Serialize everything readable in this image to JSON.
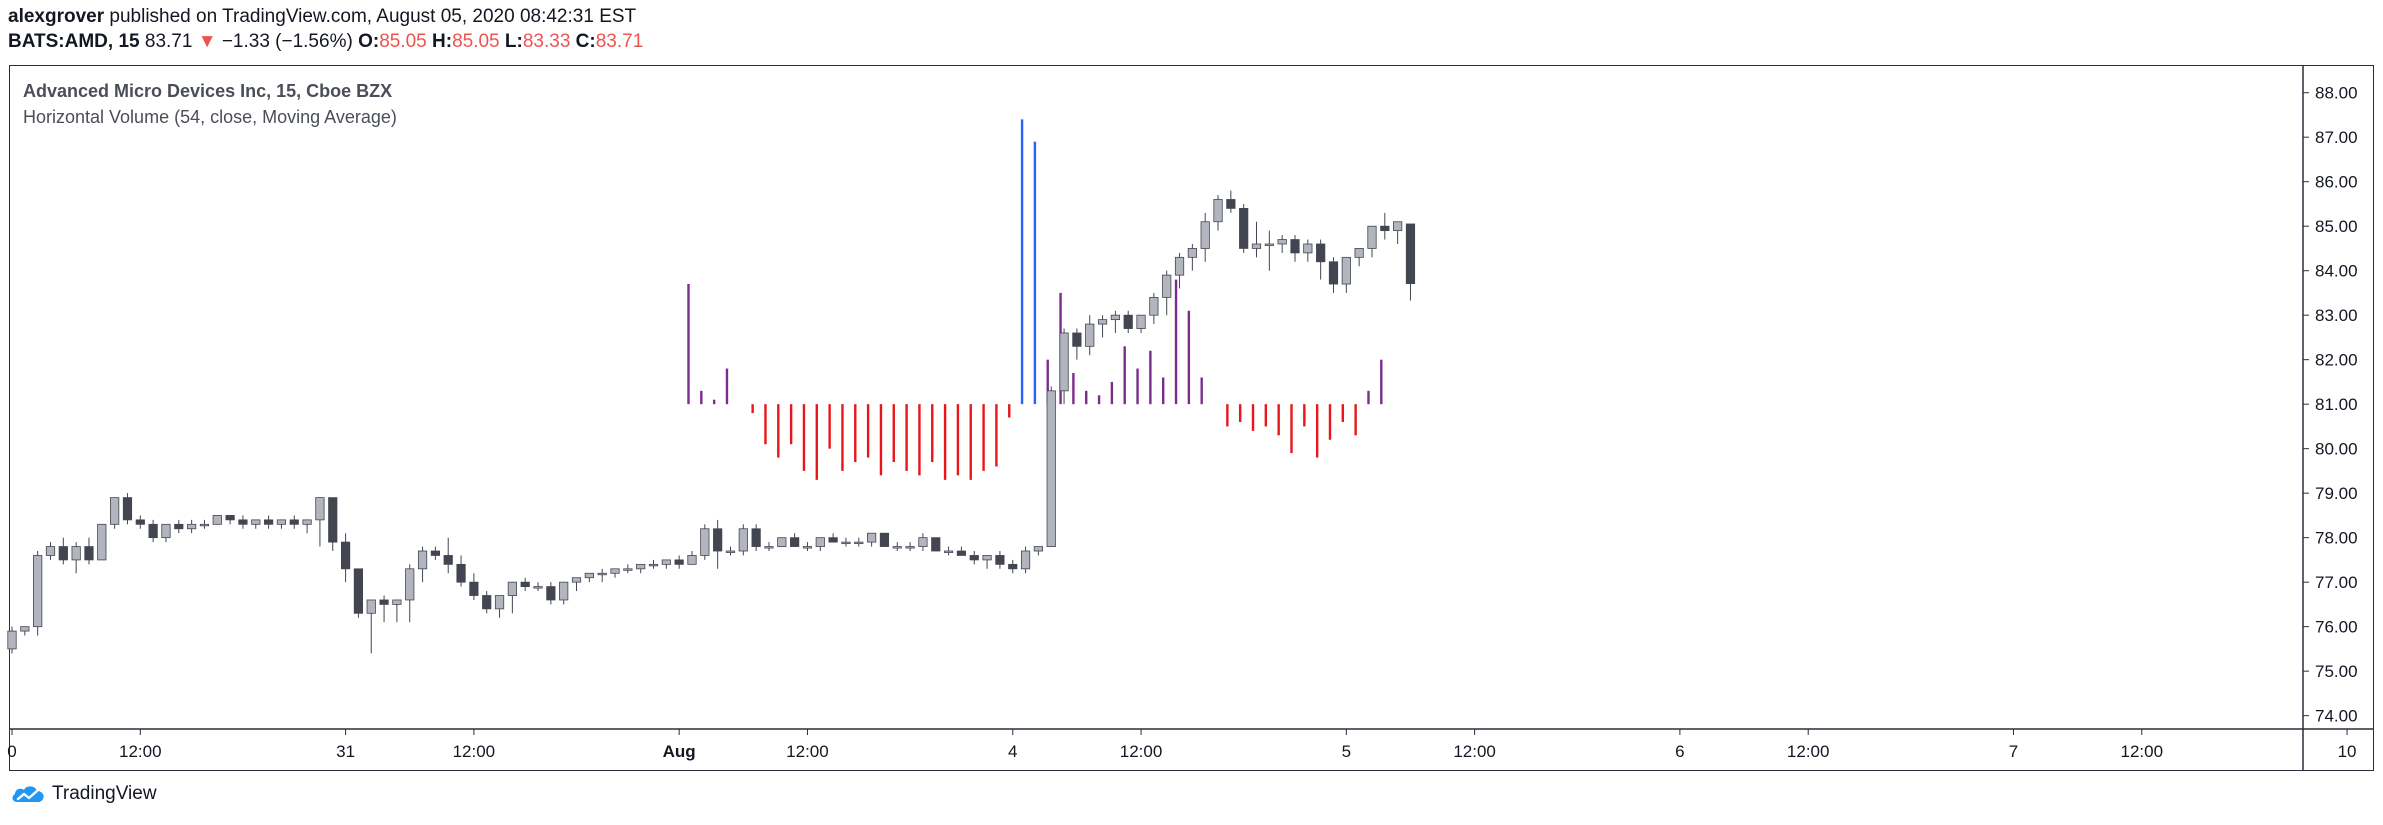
{
  "header": {
    "author": "alexgrover",
    "published": " published on TradingView.com, August 05, 2020 08:42:31 EST",
    "symbol": "BATS:AMD, 15",
    "last": "83.71",
    "change_arrow": "▼",
    "change": "−1.33 (−1.56%)",
    "o_label": "O:",
    "o_value": "85.05",
    "h_label": "H:",
    "h_value": "85.05",
    "l_label": "L:",
    "l_value": "83.33",
    "c_label": "C:",
    "c_value": "83.71"
  },
  "legend": {
    "title": "Advanced Micro Devices Inc, 15, Cboe BZX",
    "indicator": "Horizontal Volume (54, close, Moving Average)"
  },
  "footer": {
    "brand": "TradingView"
  },
  "colors": {
    "up_candle": "#b2b5be",
    "down_candle": "#434651",
    "hv_above": "#7b2d8b",
    "hv_below": "#e8161b",
    "hv_spike": "#2962ff",
    "axis_text": "#131722"
  },
  "chart_data": {
    "type": "candlestick",
    "y_axis": {
      "ylim": [
        73.7,
        88.6
      ],
      "ticks": [
        "88.00",
        "87.00",
        "86.00",
        "85.00",
        "84.00",
        "83.00",
        "82.00",
        "81.00",
        "80.00",
        "79.00",
        "78.00",
        "77.00",
        "76.00",
        "75.00",
        "74.00"
      ]
    },
    "x_axis": {
      "ticks": [
        {
          "label": "0",
          "bar": 0
        },
        {
          "label": "12:00",
          "bar": 10
        },
        {
          "label": "31",
          "bar": 26
        },
        {
          "label": "12:00",
          "bar": 36
        },
        {
          "label": "Aug",
          "bar": 52
        },
        {
          "label": "12:00",
          "bar": 62
        },
        {
          "label": "4",
          "bar": 78
        },
        {
          "label": "12:00",
          "bar": 88
        },
        {
          "label": "5",
          "bar": 104
        },
        {
          "label": "12:00",
          "bar": 114
        },
        {
          "label": "6",
          "bar": 130
        },
        {
          "label": "12:00",
          "bar": 140
        },
        {
          "label": "7",
          "bar": 156
        },
        {
          "label": "12:00",
          "bar": 166
        },
        {
          "label": "10",
          "bar": 182
        }
      ],
      "bar_range": [
        0,
        186
      ]
    },
    "candles": [
      [
        75.5,
        76.0,
        75.4,
        75.9
      ],
      [
        75.9,
        76.0,
        75.8,
        76.0
      ],
      [
        76.0,
        77.7,
        75.8,
        77.6
      ],
      [
        77.6,
        77.9,
        77.5,
        77.8
      ],
      [
        77.8,
        78.0,
        77.4,
        77.5
      ],
      [
        77.5,
        77.9,
        77.2,
        77.8
      ],
      [
        77.8,
        78.0,
        77.4,
        77.5
      ],
      [
        77.5,
        78.3,
        77.5,
        78.3
      ],
      [
        78.3,
        78.9,
        78.2,
        78.9
      ],
      [
        78.9,
        79.0,
        78.3,
        78.4
      ],
      [
        78.4,
        78.5,
        78.2,
        78.3
      ],
      [
        78.3,
        78.4,
        77.9,
        78.0
      ],
      [
        78.0,
        78.3,
        77.9,
        78.3
      ],
      [
        78.3,
        78.4,
        78.1,
        78.2
      ],
      [
        78.2,
        78.4,
        78.1,
        78.3
      ],
      [
        78.3,
        78.4,
        78.2,
        78.3
      ],
      [
        78.3,
        78.5,
        78.3,
        78.5
      ],
      [
        78.5,
        78.5,
        78.3,
        78.4
      ],
      [
        78.4,
        78.5,
        78.2,
        78.3
      ],
      [
        78.3,
        78.4,
        78.2,
        78.4
      ],
      [
        78.4,
        78.5,
        78.2,
        78.3
      ],
      [
        78.3,
        78.4,
        78.2,
        78.4
      ],
      [
        78.4,
        78.5,
        78.2,
        78.3
      ],
      [
        78.3,
        78.4,
        78.1,
        78.4
      ],
      [
        78.4,
        78.9,
        77.8,
        78.9
      ],
      [
        78.9,
        78.9,
        77.7,
        77.9
      ],
      [
        77.9,
        78.1,
        77.0,
        77.3
      ],
      [
        77.3,
        77.3,
        76.2,
        76.3
      ],
      [
        76.3,
        76.6,
        75.4,
        76.6
      ],
      [
        76.6,
        76.7,
        76.1,
        76.5
      ],
      [
        76.5,
        76.6,
        76.1,
        76.6
      ],
      [
        76.6,
        77.4,
        76.1,
        77.3
      ],
      [
        77.3,
        77.8,
        77.0,
        77.7
      ],
      [
        77.7,
        77.8,
        77.5,
        77.6
      ],
      [
        77.6,
        78.0,
        77.2,
        77.4
      ],
      [
        77.4,
        77.6,
        76.9,
        77.0
      ],
      [
        77.0,
        77.2,
        76.6,
        76.7
      ],
      [
        76.7,
        76.8,
        76.3,
        76.4
      ],
      [
        76.4,
        76.7,
        76.2,
        76.7
      ],
      [
        76.7,
        77.0,
        76.3,
        77.0
      ],
      [
        77.0,
        77.1,
        76.8,
        76.9
      ],
      [
        76.9,
        77.0,
        76.8,
        76.9
      ],
      [
        76.9,
        77.0,
        76.5,
        76.6
      ],
      [
        76.6,
        77.0,
        76.5,
        77.0
      ],
      [
        77.0,
        77.1,
        76.8,
        77.1
      ],
      [
        77.1,
        77.2,
        77.0,
        77.2
      ],
      [
        77.2,
        77.3,
        77.0,
        77.2
      ],
      [
        77.2,
        77.3,
        77.1,
        77.3
      ],
      [
        77.3,
        77.4,
        77.2,
        77.3
      ],
      [
        77.3,
        77.4,
        77.2,
        77.4
      ],
      [
        77.4,
        77.5,
        77.3,
        77.4
      ],
      [
        77.4,
        77.5,
        77.3,
        77.5
      ],
      [
        77.5,
        77.6,
        77.3,
        77.4
      ],
      [
        77.4,
        77.7,
        77.4,
        77.6
      ],
      [
        77.6,
        78.3,
        77.5,
        78.2
      ],
      [
        78.2,
        78.4,
        77.3,
        77.7
      ],
      [
        77.7,
        77.8,
        77.6,
        77.7
      ],
      [
        77.7,
        78.3,
        77.6,
        78.2
      ],
      [
        78.2,
        78.3,
        77.7,
        77.8
      ],
      [
        77.8,
        77.9,
        77.7,
        77.8
      ],
      [
        77.8,
        78.0,
        77.8,
        78.0
      ],
      [
        78.0,
        78.1,
        77.8,
        77.8
      ],
      [
        77.8,
        77.9,
        77.7,
        77.8
      ],
      [
        77.8,
        78.0,
        77.7,
        78.0
      ],
      [
        78.0,
        78.1,
        77.9,
        77.9
      ],
      [
        77.9,
        78.0,
        77.8,
        77.9
      ],
      [
        77.9,
        78.0,
        77.8,
        77.9
      ],
      [
        77.9,
        78.1,
        77.8,
        78.1
      ],
      [
        78.1,
        78.1,
        77.8,
        77.8
      ],
      [
        77.8,
        77.9,
        77.7,
        77.8
      ],
      [
        77.8,
        77.9,
        77.7,
        77.8
      ],
      [
        77.8,
        78.1,
        77.7,
        78.0
      ],
      [
        78.0,
        78.0,
        77.7,
        77.7
      ],
      [
        77.7,
        77.8,
        77.6,
        77.7
      ],
      [
        77.7,
        77.8,
        77.6,
        77.6
      ],
      [
        77.6,
        77.7,
        77.4,
        77.5
      ],
      [
        77.5,
        77.6,
        77.3,
        77.6
      ],
      [
        77.6,
        77.7,
        77.3,
        77.4
      ],
      [
        77.4,
        77.5,
        77.2,
        77.3
      ],
      [
        77.3,
        77.8,
        77.2,
        77.7
      ],
      [
        77.7,
        77.8,
        77.6,
        77.8
      ],
      [
        77.8,
        81.4,
        77.8,
        81.3
      ],
      [
        81.3,
        82.7,
        81.0,
        82.6
      ],
      [
        82.6,
        82.7,
        82.0,
        82.3
      ],
      [
        82.3,
        83.0,
        82.1,
        82.8
      ],
      [
        82.8,
        83.0,
        82.5,
        82.9
      ],
      [
        82.9,
        83.1,
        82.6,
        83.0
      ],
      [
        83.0,
        83.1,
        82.6,
        82.7
      ],
      [
        82.7,
        83.0,
        82.6,
        83.0
      ],
      [
        83.0,
        83.5,
        82.8,
        83.4
      ],
      [
        83.4,
        84.0,
        83.0,
        83.9
      ],
      [
        83.9,
        84.4,
        83.6,
        84.3
      ],
      [
        84.3,
        84.6,
        84.0,
        84.5
      ],
      [
        84.5,
        85.3,
        84.2,
        85.1
      ],
      [
        85.1,
        85.7,
        84.9,
        85.6
      ],
      [
        85.6,
        85.8,
        85.3,
        85.4
      ],
      [
        85.4,
        85.5,
        84.4,
        84.5
      ],
      [
        84.5,
        85.1,
        84.3,
        84.6
      ],
      [
        84.6,
        84.9,
        84.0,
        84.6
      ],
      [
        84.6,
        84.8,
        84.4,
        84.7
      ],
      [
        84.7,
        84.8,
        84.2,
        84.4
      ],
      [
        84.4,
        84.7,
        84.2,
        84.6
      ],
      [
        84.6,
        84.7,
        83.8,
        84.2
      ],
      [
        84.2,
        84.3,
        83.5,
        83.7
      ],
      [
        83.7,
        84.3,
        83.5,
        84.3
      ],
      [
        84.3,
        84.5,
        84.1,
        84.5
      ],
      [
        84.5,
        85.0,
        84.3,
        85.0
      ],
      [
        85.0,
        85.3,
        84.7,
        84.9
      ],
      [
        84.9,
        85.1,
        84.6,
        85.1
      ],
      [
        85.05,
        85.05,
        83.33,
        83.71
      ]
    ],
    "horizontal_volume": {
      "baseline": 81.0,
      "bars": [
        {
          "bar": 53,
          "value": 83.7
        },
        {
          "bar": 54,
          "value": 81.3
        },
        {
          "bar": 55,
          "value": 81.1
        },
        {
          "bar": 56,
          "value": 81.8
        },
        {
          "bar": 58,
          "value": 80.8
        },
        {
          "bar": 59,
          "value": 80.1
        },
        {
          "bar": 60,
          "value": 79.8
        },
        {
          "bar": 61,
          "value": 80.1
        },
        {
          "bar": 62,
          "value": 79.5
        },
        {
          "bar": 63,
          "value": 79.3
        },
        {
          "bar": 64,
          "value": 80.0
        },
        {
          "bar": 65,
          "value": 79.5
        },
        {
          "bar": 66,
          "value": 79.7
        },
        {
          "bar": 67,
          "value": 79.8
        },
        {
          "bar": 68,
          "value": 79.4
        },
        {
          "bar": 69,
          "value": 79.7
        },
        {
          "bar": 70,
          "value": 79.5
        },
        {
          "bar": 71,
          "value": 79.4
        },
        {
          "bar": 72,
          "value": 79.7
        },
        {
          "bar": 73,
          "value": 79.3
        },
        {
          "bar": 74,
          "value": 79.4
        },
        {
          "bar": 75,
          "value": 79.3
        },
        {
          "bar": 76,
          "value": 79.5
        },
        {
          "bar": 77,
          "value": 79.6
        },
        {
          "bar": 78,
          "value": 80.7
        },
        {
          "bar": 79,
          "value": 87.4
        },
        {
          "bar": 80,
          "value": 86.9
        },
        {
          "bar": 81,
          "value": 82.0
        },
        {
          "bar": 82,
          "value": 83.5
        },
        {
          "bar": 83,
          "value": 81.7
        },
        {
          "bar": 84,
          "value": 81.3
        },
        {
          "bar": 85,
          "value": 81.2
        },
        {
          "bar": 86,
          "value": 81.5
        },
        {
          "bar": 87,
          "value": 82.3
        },
        {
          "bar": 88,
          "value": 81.8
        },
        {
          "bar": 89,
          "value": 82.2
        },
        {
          "bar": 90,
          "value": 81.6
        },
        {
          "bar": 91,
          "value": 83.8
        },
        {
          "bar": 92,
          "value": 83.1
        },
        {
          "bar": 93,
          "value": 81.6
        },
        {
          "bar": 94,
          "value": 81.0
        },
        {
          "bar": 95,
          "value": 80.5
        },
        {
          "bar": 96,
          "value": 80.6
        },
        {
          "bar": 97,
          "value": 80.4
        },
        {
          "bar": 98,
          "value": 80.5
        },
        {
          "bar": 99,
          "value": 80.3
        },
        {
          "bar": 100,
          "value": 79.9
        },
        {
          "bar": 101,
          "value": 80.5
        },
        {
          "bar": 102,
          "value": 79.8
        },
        {
          "bar": 103,
          "value": 80.2
        },
        {
          "bar": 104,
          "value": 80.6
        },
        {
          "bar": 105,
          "value": 80.3
        },
        {
          "bar": 106,
          "value": 81.3
        },
        {
          "bar": 107,
          "value": 82.0
        }
      ]
    }
  }
}
